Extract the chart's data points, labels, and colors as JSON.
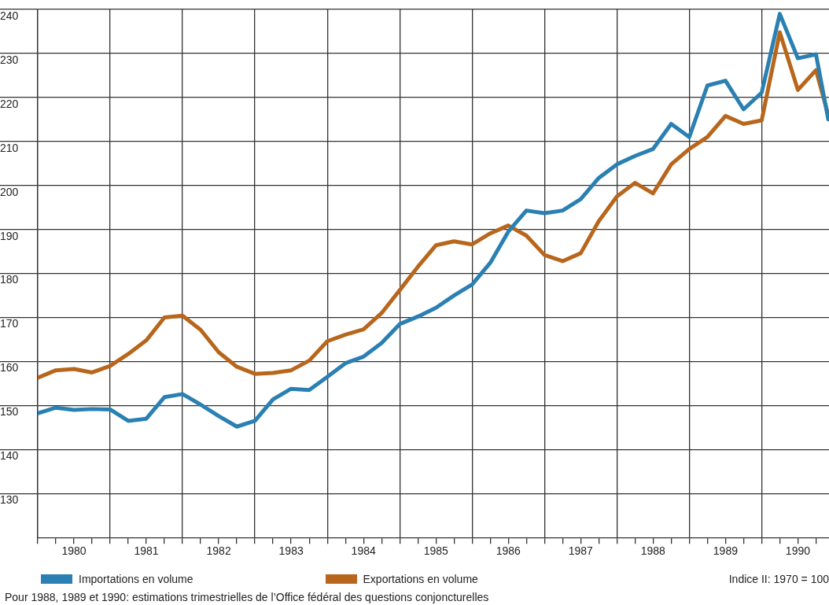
{
  "chart_data": {
    "type": "line",
    "x": [
      1980,
      1980.25,
      1980.5,
      1980.75,
      1981,
      1981.25,
      1981.5,
      1981.75,
      1982,
      1982.25,
      1982.5,
      1982.75,
      1983,
      1983.25,
      1983.5,
      1983.75,
      1984,
      1984.25,
      1984.5,
      1984.75,
      1985,
      1985.25,
      1985.5,
      1985.75,
      1986,
      1986.25,
      1986.5,
      1986.75,
      1987,
      1987.25,
      1987.5,
      1987.75,
      1988,
      1988.25,
      1988.5,
      1988.75,
      1989,
      1989.25,
      1989.5,
      1989.75,
      1990,
      1990.25,
      1990.5,
      1990.75,
      1990.92
    ],
    "series": [
      {
        "name": "Importations en volume",
        "color": "#2a80b2",
        "values": [
          148.2,
          149.5,
          149,
          149.2,
          149.1,
          146.5,
          147,
          151.9,
          152.6,
          150.2,
          147.6,
          145.2,
          146.5,
          151.4,
          153.8,
          153.5,
          156.5,
          159.6,
          161.1,
          164.2,
          168.5,
          170.2,
          172.2,
          175,
          177.5,
          182.4,
          189.5,
          194.3,
          193.7,
          194.3,
          196.9,
          201.7,
          204.8,
          206.7,
          208.3,
          214,
          211,
          222.7,
          223.8,
          217.3,
          221.1,
          239,
          228.9,
          229.8,
          215
        ]
      },
      {
        "name": "Exportations en volume",
        "color": "#b8661c",
        "values": [
          156.3,
          158,
          158.3,
          157.5,
          159,
          161.7,
          164.8,
          170,
          170.4,
          167.2,
          162.1,
          158.8,
          157.2,
          157.4,
          158,
          160.2,
          164.6,
          166.1,
          167.3,
          171,
          176.2,
          181.5,
          186.4,
          187.3,
          186.6,
          189.1,
          190.9,
          188.6,
          184.2,
          182.8,
          184.6,
          191.9,
          197.5,
          200.6,
          198.2,
          204.8,
          208.3,
          211,
          215.8,
          214,
          214.8,
          234.8,
          221.7,
          226.2,
          216
        ]
      }
    ],
    "xlim": [
      1980,
      1990.93
    ],
    "xticks": [
      {
        "value": 1980,
        "label": null
      },
      {
        "value": 1980.25,
        "label": null
      },
      {
        "value": 1980.5,
        "label": "1980"
      },
      {
        "value": 1980.75,
        "label": null
      },
      {
        "value": 1981,
        "label": null
      },
      {
        "value": 1981.25,
        "label": null
      },
      {
        "value": 1981.5,
        "label": "1981"
      },
      {
        "value": 1981.75,
        "label": null
      },
      {
        "value": 1982,
        "label": null
      },
      {
        "value": 1982.25,
        "label": null
      },
      {
        "value": 1982.5,
        "label": "1982"
      },
      {
        "value": 1982.75,
        "label": null
      },
      {
        "value": 1983,
        "label": null
      },
      {
        "value": 1983.25,
        "label": null
      },
      {
        "value": 1983.5,
        "label": "1983"
      },
      {
        "value": 1983.75,
        "label": null
      },
      {
        "value": 1984,
        "label": null
      },
      {
        "value": 1984.25,
        "label": null
      },
      {
        "value": 1984.5,
        "label": "1984"
      },
      {
        "value": 1984.75,
        "label": null
      },
      {
        "value": 1985,
        "label": null
      },
      {
        "value": 1985.25,
        "label": null
      },
      {
        "value": 1985.5,
        "label": "1985"
      },
      {
        "value": 1985.75,
        "label": null
      },
      {
        "value": 1986,
        "label": null
      },
      {
        "value": 1986.25,
        "label": null
      },
      {
        "value": 1986.5,
        "label": "1986"
      },
      {
        "value": 1986.75,
        "label": null
      },
      {
        "value": 1987,
        "label": null
      },
      {
        "value": 1987.25,
        "label": null
      },
      {
        "value": 1987.5,
        "label": "1987"
      },
      {
        "value": 1987.75,
        "label": null
      },
      {
        "value": 1988,
        "label": null
      },
      {
        "value": 1988.25,
        "label": null
      },
      {
        "value": 1988.5,
        "label": "1988"
      },
      {
        "value": 1988.75,
        "label": null
      },
      {
        "value": 1989,
        "label": null
      },
      {
        "value": 1989.25,
        "label": null
      },
      {
        "value": 1989.5,
        "label": "1989"
      },
      {
        "value": 1989.75,
        "label": null
      },
      {
        "value": 1990,
        "label": null
      },
      {
        "value": 1990.25,
        "label": null
      },
      {
        "value": 1990.5,
        "label": "1990"
      },
      {
        "value": 1990.75,
        "label": null
      }
    ],
    "ylim": [
      120,
      240
    ],
    "yticks": [
      130,
      140,
      150,
      160,
      170,
      180,
      190,
      200,
      210,
      220,
      230,
      240
    ],
    "grid": true,
    "legend": "bottom",
    "marker": "none",
    "line_style": "solid",
    "annotations": [
      "Indice II: 1970 = 100",
      "Pour 1988, 1989 et 1990: estimations trimestrielles de l’Office fédéral des questions conjoncturelles"
    ]
  }
}
